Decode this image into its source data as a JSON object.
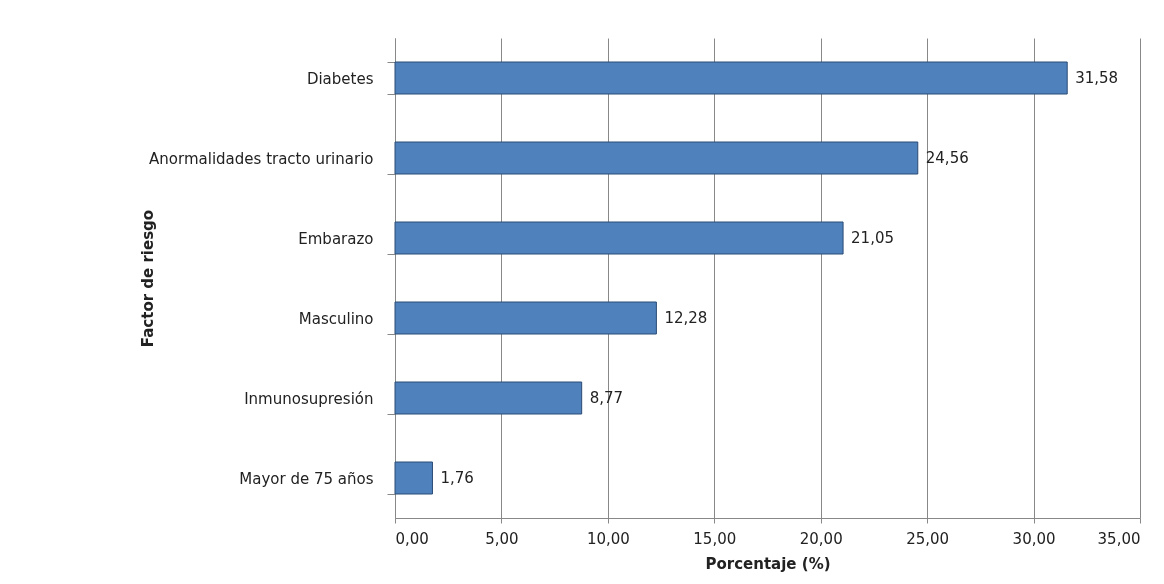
{
  "chart_data": {
    "type": "bar",
    "orientation": "horizontal",
    "xlabel": "Porcentaje (%)",
    "ylabel": "Factor de riesgo",
    "categories": [
      "Diabetes",
      "Anormalidades tracto urinario",
      "Embarazo",
      "Masculino",
      "Inmunosupresión",
      "Mayor de 75 años"
    ],
    "values": [
      31.58,
      24.56,
      21.05,
      12.28,
      8.77,
      1.76
    ],
    "value_labels": [
      "31,58",
      "24,56",
      "21,05",
      "12,28",
      "8,77",
      "1,76"
    ],
    "color": "#4f81bd",
    "xlim": [
      0,
      35
    ],
    "xticks": [
      {
        "value": 0,
        "label": "0,00"
      },
      {
        "value": 5,
        "label": "5,00"
      },
      {
        "value": 10,
        "label": "10,00"
      },
      {
        "value": 15,
        "label": "15,00"
      },
      {
        "value": 20,
        "label": "20,00"
      },
      {
        "value": 25,
        "label": "25,00"
      },
      {
        "value": 30,
        "label": "30,00"
      },
      {
        "value": 35,
        "label": "35,00"
      }
    ],
    "grid": "x"
  }
}
